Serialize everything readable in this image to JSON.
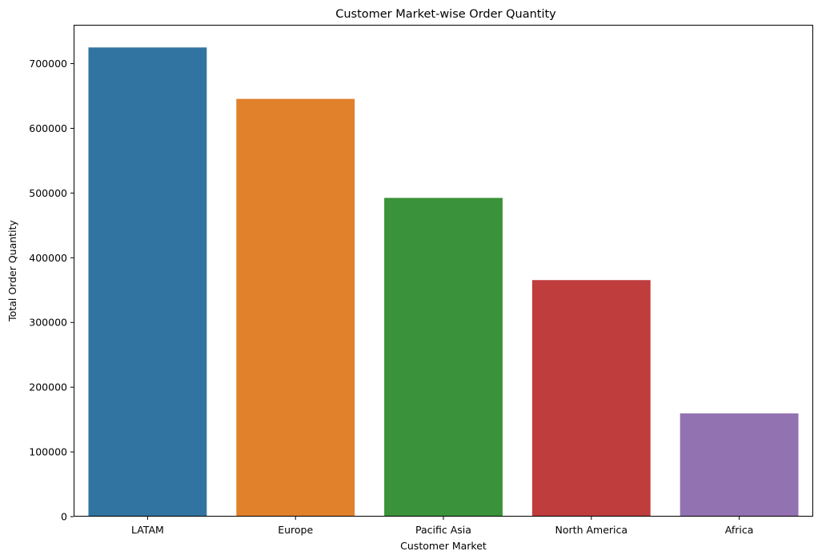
{
  "chart_data": {
    "type": "bar",
    "title": "Customer Market-wise Order Quantity",
    "xlabel": "Customer Market",
    "ylabel": "Total Order Quantity",
    "categories": [
      "LATAM",
      "Europe",
      "Pacific Asia",
      "North America",
      "Africa"
    ],
    "values": [
      725000,
      645500,
      492500,
      365500,
      159500
    ],
    "colors": [
      "#3274a1",
      "#e1812c",
      "#3a923a",
      "#c03d3e",
      "#9372b2"
    ],
    "ylim": [
      0,
      760000
    ],
    "yticks": [
      0,
      100000,
      200000,
      300000,
      400000,
      500000,
      600000,
      700000
    ],
    "ytick_labels": [
      "0",
      "100000",
      "200000",
      "300000",
      "400000",
      "500000",
      "600000",
      "700000"
    ],
    "grid": false,
    "legend": "none"
  }
}
